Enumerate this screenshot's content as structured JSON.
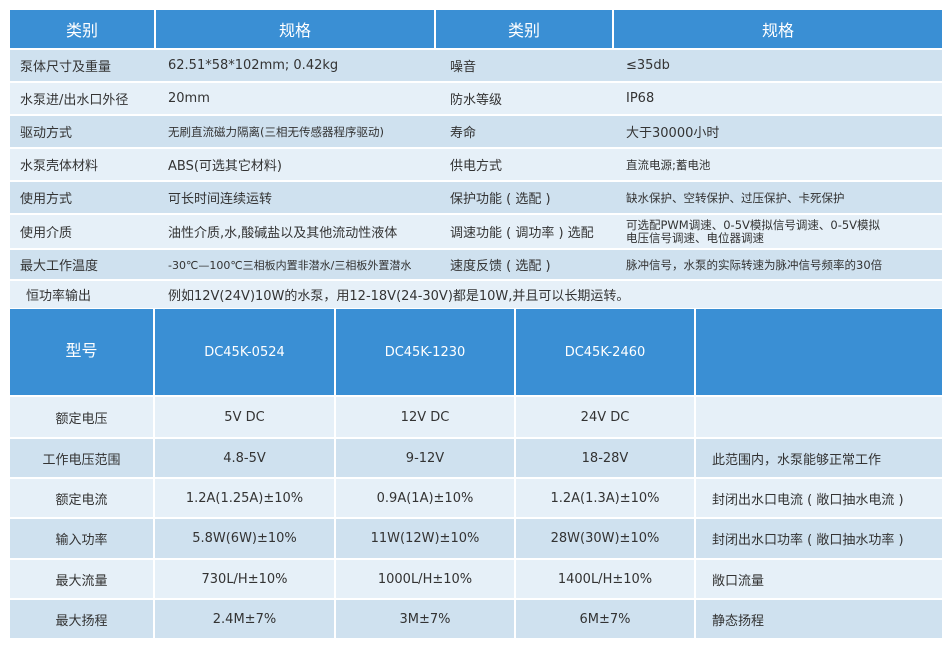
{
  "spec_table": {
    "headers": [
      "类别",
      "规格",
      "类别",
      "规格"
    ],
    "rows": [
      [
        "泵体尺寸及重量",
        "62.51*58*102mm; 0.42kg",
        "噪音",
        "≤35db"
      ],
      [
        "水泵进/出水口外径",
        "20mm",
        "防水等级",
        "IP68"
      ],
      [
        "驱动方式",
        "无刷直流磁力隔离(三相无传感器程序驱动)",
        "寿命",
        "大于30000小时"
      ],
      [
        "水泵壳体材料",
        "ABS(可选其它材料)",
        "供电方式",
        "直流电源;蓄电池"
      ],
      [
        "使用方式",
        "可长时间连续运转",
        "保护功能 ( 选配 )",
        "缺水保护、空转保护、过压保护、卡死保护"
      ],
      [
        "使用介质",
        "油性介质,水,酸碱盐以及其他流动性液体",
        "调速功能 ( 调功率 ) 选配",
        "可选配PWM调速、0-5V模拟信号调速、0-5V模拟电压信号调速、电位器调速"
      ],
      [
        "最大工作温度",
        "-30℃—100℃三相板内置非潜水/三相板外置潜水",
        "速度反馈 ( 选配 )",
        "脉冲信号，水泵的实际转速为脉冲信号频率的30倍"
      ]
    ],
    "constant_power": {
      "label": "恒功率输出",
      "value": "例如12V(24V)10W的水泵，用12-18V(24-30V)都是10W,并且可以长期运转。"
    }
  },
  "model_table": {
    "header_label": "型号",
    "models": [
      "DC45K-0524",
      "DC45K-1230",
      "DC45K-2460"
    ],
    "notes_header": "",
    "rows": [
      {
        "label": "额定电压",
        "values": [
          "5V DC",
          "12V DC",
          "24V DC"
        ],
        "note": ""
      },
      {
        "label": "工作电压范围",
        "values": [
          "4.8-5V",
          "9-12V",
          "18-28V"
        ],
        "note": "此范围内，水泵能够正常工作"
      },
      {
        "label": "额定电流",
        "values": [
          "1.2A(1.25A)±10%",
          "0.9A(1A)±10%",
          "1.2A(1.3A)±10%"
        ],
        "note": "封闭出水口电流 ( 敞口抽水电流 )"
      },
      {
        "label": "输入功率",
        "values": [
          "5.8W(6W)±10%",
          "11W(12W)±10%",
          "28W(30W)±10%"
        ],
        "note": "封闭出水口功率 ( 敞口抽水功率 )"
      },
      {
        "label": "最大流量",
        "values": [
          "730L/H±10%",
          "1000L/H±10%",
          "1400L/H±10%"
        ],
        "note": "敞口流量"
      },
      {
        "label": "最大扬程",
        "values": [
          "2.4M±7%",
          "3M±7%",
          "6M±7%"
        ],
        "note": "静态扬程"
      }
    ]
  }
}
